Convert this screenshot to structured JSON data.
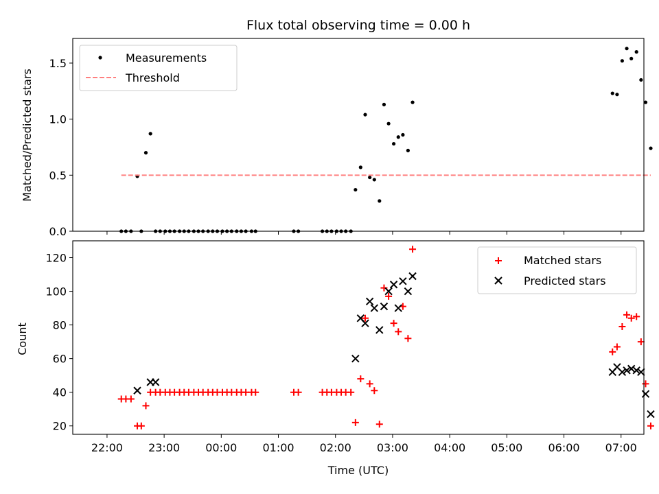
{
  "chart_data": [
    {
      "type": "scatter",
      "title": "Flux total observing time = 0.00 h",
      "xlabel": "",
      "ylabel": "Matched/Predicted stars",
      "xlim": [
        -0.6,
        9.4
      ],
      "ylim": [
        0,
        1.72
      ],
      "yticks": [
        0.0,
        0.5,
        1.0,
        1.5
      ],
      "ytick_labels": [
        "0.0",
        "0.5",
        "1.0",
        "1.5"
      ],
      "legend_position": "upper-left",
      "series": [
        {
          "name": "Measurements",
          "marker": "dot",
          "color": "#000000",
          "x": [
            0.25,
            0.33,
            0.42,
            0.53,
            0.6,
            0.68,
            0.76,
            0.85,
            0.93,
            1.02,
            1.1,
            1.18,
            1.27,
            1.35,
            1.43,
            1.52,
            1.6,
            1.68,
            1.77,
            1.85,
            1.93,
            2.02,
            2.1,
            2.18,
            2.27,
            2.35,
            2.43,
            2.53,
            2.6,
            3.27,
            3.35,
            3.77,
            3.85,
            3.93,
            4.02,
            4.1,
            4.18,
            4.27,
            4.35,
            4.44,
            4.52,
            4.6,
            4.68,
            4.77,
            4.85,
            4.93,
            5.02,
            5.1,
            5.18,
            5.27,
            5.35,
            8.85,
            8.93,
            9.02,
            9.1,
            9.18,
            9.27,
            9.35,
            9.43,
            9.52
          ],
          "y": [
            0,
            0,
            0,
            0.49,
            0,
            0.7,
            0.87,
            0,
            0,
            0,
            0,
            0,
            0,
            0,
            0,
            0,
            0,
            0,
            0,
            0,
            0,
            0,
            0,
            0,
            0,
            0,
            0,
            0,
            0,
            0,
            0,
            0,
            0,
            0,
            0,
            0,
            0,
            0,
            0.37,
            0.57,
            1.04,
            0.48,
            0.46,
            0.27,
            1.13,
            0.96,
            0.78,
            0.84,
            0.86,
            0.72,
            1.15,
            1.23,
            1.22,
            1.52,
            1.63,
            1.54,
            1.6,
            1.35,
            1.15,
            0.74
          ]
        },
        {
          "name": "Threshold",
          "style": "dashed",
          "color": "#ff7f7f",
          "x": [
            0.25,
            9.52
          ],
          "y": [
            0.5,
            0.5
          ]
        }
      ]
    },
    {
      "type": "scatter",
      "title": "",
      "xlabel": "Time (UTC)",
      "ylabel": "Count",
      "xlim": [
        -0.6,
        9.4
      ],
      "ylim": [
        15,
        130
      ],
      "xticks": [
        0,
        1,
        2,
        3,
        4,
        5,
        6,
        7,
        8,
        9
      ],
      "xtick_labels": [
        "22:00",
        "23:00",
        "00:00",
        "01:00",
        "02:00",
        "03:00",
        "04:00",
        "05:00",
        "06:00",
        "07:00"
      ],
      "yticks": [
        20,
        40,
        60,
        80,
        100,
        120
      ],
      "ytick_labels": [
        "20",
        "40",
        "60",
        "80",
        "100",
        "120"
      ],
      "legend_position": "upper-right",
      "series": [
        {
          "name": "Matched stars",
          "marker": "plus",
          "color": "#ff0000",
          "x": [
            0.25,
            0.33,
            0.42,
            0.53,
            0.6,
            0.68,
            0.76,
            0.85,
            0.93,
            1.02,
            1.1,
            1.18,
            1.27,
            1.35,
            1.43,
            1.52,
            1.6,
            1.68,
            1.77,
            1.85,
            1.93,
            2.02,
            2.1,
            2.18,
            2.27,
            2.35,
            2.43,
            2.53,
            2.6,
            3.27,
            3.35,
            3.77,
            3.85,
            3.93,
            4.02,
            4.1,
            4.18,
            4.27,
            4.35,
            4.44,
            4.52,
            4.6,
            4.68,
            4.77,
            4.85,
            4.93,
            5.02,
            5.1,
            5.18,
            5.27,
            5.35,
            8.85,
            8.93,
            9.02,
            9.1,
            9.18,
            9.27,
            9.35,
            9.43,
            9.52
          ],
          "y": [
            36,
            36,
            36,
            20,
            20,
            32,
            40,
            40,
            40,
            40,
            40,
            40,
            40,
            40,
            40,
            40,
            40,
            40,
            40,
            40,
            40,
            40,
            40,
            40,
            40,
            40,
            40,
            40,
            40,
            40,
            40,
            40,
            40,
            40,
            40,
            40,
            40,
            40,
            22,
            48,
            84,
            45,
            41,
            21,
            102,
            97,
            81,
            76,
            91,
            72,
            125,
            64,
            67,
            79,
            86,
            84,
            85,
            70,
            45,
            20
          ]
        },
        {
          "name": "Predicted stars",
          "marker": "x",
          "color": "#000000",
          "x": [
            0.53,
            0.76,
            0.85,
            4.35,
            4.44,
            4.52,
            4.6,
            4.68,
            4.77,
            4.85,
            4.93,
            5.02,
            5.1,
            5.18,
            5.27,
            5.35,
            8.85,
            8.93,
            9.02,
            9.1,
            9.18,
            9.27,
            9.35,
            9.43,
            9.52
          ],
          "y": [
            41,
            46,
            46,
            60,
            84,
            81,
            94,
            90,
            77,
            91,
            100,
            104,
            90,
            106,
            100,
            109,
            52,
            55,
            52,
            53,
            54,
            53,
            52,
            39,
            27
          ]
        }
      ]
    }
  ]
}
